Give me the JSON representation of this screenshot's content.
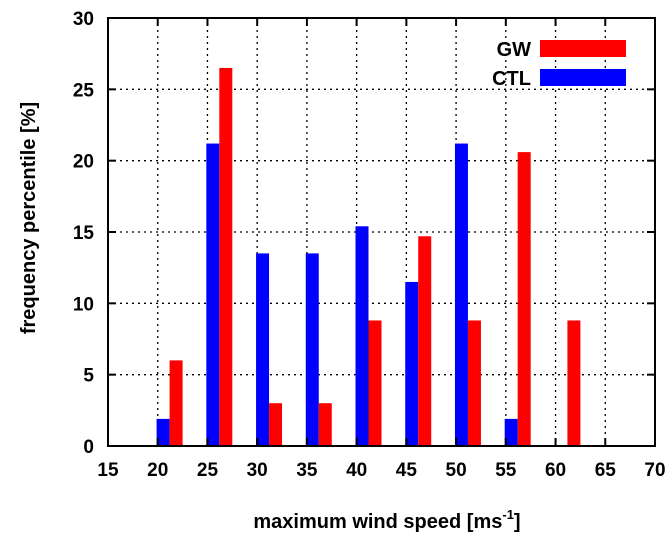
{
  "chart_data": {
    "type": "bar",
    "title": "",
    "xlabel": "maximum wind speed [ms",
    "xlabel_superscript": "-1",
    "xlabel_suffix": "]",
    "ylabel": "frequency percentile [%]",
    "xlim": [
      15,
      70
    ],
    "ylim": [
      0,
      30
    ],
    "xticks": [
      15,
      20,
      25,
      30,
      35,
      40,
      45,
      50,
      55,
      60,
      65,
      70
    ],
    "yticks": [
      0,
      5,
      10,
      15,
      20,
      25,
      30
    ],
    "grid": true,
    "legend_position": "top-right",
    "bin_width": 5,
    "categories": [
      22.5,
      27.5,
      32.5,
      37.5,
      42.5,
      47.5,
      52.5,
      57.5,
      62.5,
      67.5
    ],
    "series": [
      {
        "name": "GW",
        "color": "#ff0000",
        "values": [
          6.0,
          26.5,
          3.0,
          3.0,
          8.8,
          14.7,
          8.8,
          20.6,
          8.8,
          0
        ]
      },
      {
        "name": "CTL",
        "color": "#0000ff",
        "values": [
          1.9,
          21.2,
          13.5,
          13.5,
          15.4,
          11.5,
          21.2,
          1.9,
          0,
          0
        ]
      }
    ]
  }
}
